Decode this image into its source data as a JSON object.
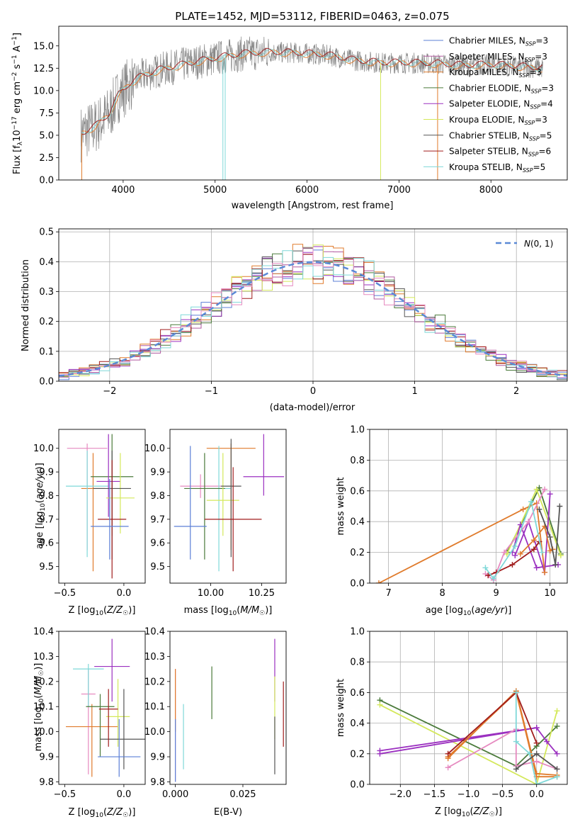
{
  "figure_title": "PLATE=1452, MJD=53112, FIBERID=0463, z=0.075",
  "colors": [
    "#5b7fd6",
    "#b15aa0",
    "#e07b2c",
    "#4a7a3a",
    "#9b30c0",
    "#d4e85a",
    "#555555",
    "#a01c1c",
    "#7fd8d8",
    "#e68ac0",
    "#888888"
  ],
  "chart_data": [
    {
      "id": "spectrum",
      "type": "line",
      "xlabel": "wavelength [Angstrom, rest frame]",
      "ylabel": "Flux [f_λ 10^-17 erg cm^-2 s^-1 A^-1]",
      "xlim": [
        3300,
        8830
      ],
      "ylim": [
        0,
        17.2
      ],
      "xticks": [
        4000,
        5000,
        6000,
        7000,
        8000
      ],
      "yticks": [
        0.0,
        2.5,
        5.0,
        7.5,
        10.0,
        12.5,
        15.0
      ],
      "ytick_labels": [
        "0.0",
        "2.5",
        "5.0",
        "7.5",
        "10.0",
        "12.5",
        "15.0"
      ],
      "legend": [
        "Chabrier MILES, N_SSP=3",
        "Salpeter MILES, N_SSP=3",
        "Kroupa MILES, N_SSP=3",
        "Chabrier ELODIE, N_SSP=3",
        "Salpeter ELODIE, N_SSP=4",
        "Kroupa ELODIE, N_SSP=3",
        "Chabrier STELIB, N_SSP=5",
        "Salpeter STELIB, N_SSP=6",
        "Kroupa STELIB, N_SSP=5"
      ],
      "legend_placement": "upper right",
      "continuum": {
        "x": [
          3550,
          3700,
          3850,
          3950,
          4050,
          4200,
          4400,
          4700,
          5000,
          5300,
          5600,
          5900,
          6200,
          6500,
          6800,
          7100,
          7400,
          7700,
          8000,
          8300,
          8550
        ],
        "y": [
          5.2,
          6.0,
          7.4,
          9.5,
          10.6,
          11.6,
          12.3,
          13.0,
          13.6,
          14.1,
          14.3,
          14.2,
          14.0,
          13.4,
          13.1,
          13.1,
          13.0,
          12.8,
          12.9,
          12.7,
          12.5
        ]
      }
    },
    {
      "id": "residuals",
      "type": "histogram",
      "xlabel": "(data-model)/error",
      "ylabel": "Normed distribution",
      "xlim": [
        -2.5,
        2.5
      ],
      "ylim": [
        0,
        0.51
      ],
      "xticks": [
        -2,
        -1,
        0,
        1,
        2
      ],
      "xtick_labels": [
        "−2",
        "−1",
        "0",
        "1",
        "2"
      ],
      "yticks": [
        0.0,
        0.1,
        0.2,
        0.3,
        0.4,
        0.5
      ],
      "ytick_labels": [
        "0.0",
        "0.1",
        "0.2",
        "0.3",
        "0.4",
        "0.5"
      ],
      "grid": true,
      "legend": [
        "N(0,1)"
      ],
      "bin_width": 0.1,
      "gaussian": {
        "mean": 0,
        "sigma": 1
      }
    },
    {
      "id": "age_vs_Z",
      "type": "errorbar",
      "xlabel": "Z [log10(Z/Z☉)]",
      "ylabel": "age [log10(age/yr)]",
      "xlim": [
        -0.55,
        0.18
      ],
      "ylim": [
        9.43,
        10.08
      ],
      "xticks": [
        -0.5,
        0.0
      ],
      "xtick_labels": [
        "−0.5",
        "0.0"
      ],
      "yticks": [
        9.5,
        9.6,
        9.7,
        9.8,
        9.9,
        10.0
      ],
      "ytick_labels": [
        "9.5",
        "9.6",
        "9.7",
        "9.8",
        "9.9",
        "10.0"
      ],
      "points": [
        {
          "x": -0.31,
          "xerr": 0.17,
          "y": 10.0,
          "yerr": [
            0.43,
            0.02
          ]
        },
        {
          "x": -0.26,
          "xerr": 0.1,
          "y": 9.83,
          "yerr": [
            0.35,
            0.15
          ]
        },
        {
          "x": -0.31,
          "xerr": 0.18,
          "y": 9.84,
          "yerr": [
            0.3,
            0.15
          ]
        },
        {
          "x": -0.1,
          "xerr": 0.18,
          "y": 9.88,
          "yerr": [
            0.25,
            0.18
          ]
        },
        {
          "x": -0.13,
          "xerr": 0.1,
          "y": 9.86,
          "yerr": [
            0.15,
            0.2
          ]
        },
        {
          "x": -0.03,
          "xerr": 0.12,
          "y": 9.79,
          "yerr": [
            0.15,
            0.19
          ]
        },
        {
          "x": -0.1,
          "xerr": 0.16,
          "y": 9.83,
          "yerr": [
            0.3,
            0.16
          ]
        },
        {
          "x": -0.1,
          "xerr": 0.12,
          "y": 9.7,
          "yerr": [
            0.25,
            0.25
          ]
        },
        {
          "x": -0.12,
          "xerr": 0.16,
          "y": 9.67,
          "yerr": [
            0.14,
            0.2
          ]
        }
      ]
    },
    {
      "id": "age_vs_mass",
      "type": "errorbar",
      "xlabel": "mass [log10(M/M☉)]",
      "ylabel": "",
      "xlim": [
        9.8,
        10.37
      ],
      "ylim": [
        9.43,
        10.08
      ],
      "xticks": [
        10.0,
        10.25
      ],
      "xtick_labels": [
        "10.00",
        "10.25"
      ],
      "yticks": [
        9.5,
        9.6,
        9.7,
        9.8,
        9.9,
        10.0
      ],
      "ytick_labels": [
        "9.5",
        "9.6",
        "9.7",
        "9.8",
        "9.9",
        "10.0"
      ],
      "points": [
        {
          "x": 9.95,
          "xerr": 0.1,
          "y": 9.84,
          "yerr": [
            0.05,
            0.05
          ]
        },
        {
          "x": 10.1,
          "xerr": 0.12,
          "y": 10.0,
          "yerr": [
            0.43,
            0.02
          ]
        },
        {
          "x": 10.04,
          "xerr": 0.06,
          "y": 9.83,
          "yerr": [
            0.35,
            0.18
          ]
        },
        {
          "x": 9.97,
          "xerr": 0.1,
          "y": 9.83,
          "yerr": [
            0.3,
            0.15
          ]
        },
        {
          "x": 10.26,
          "xerr": 0.1,
          "y": 9.88,
          "yerr": [
            0.08,
            0.18
          ]
        },
        {
          "x": 10.06,
          "xerr": 0.08,
          "y": 9.78,
          "yerr": [
            0.15,
            0.2
          ]
        },
        {
          "x": 10.1,
          "xerr": 0.05,
          "y": 9.84,
          "yerr": [
            0.3,
            0.2
          ]
        },
        {
          "x": 10.11,
          "xerr": 0.14,
          "y": 9.7,
          "yerr": [
            0.22,
            0.22
          ]
        },
        {
          "x": 9.9,
          "xerr": 0.08,
          "y": 9.67,
          "yerr": [
            0.14,
            0.34
          ]
        }
      ]
    },
    {
      "id": "weight_vs_age",
      "type": "line",
      "xlabel": "age [log10(age/yr)]",
      "ylabel": "mass weight",
      "xlim": [
        6.65,
        10.32
      ],
      "ylim": [
        0,
        1.0
      ],
      "xticks": [
        7,
        8,
        9,
        10
      ],
      "xtick_labels": [
        "7",
        "8",
        "9",
        "10"
      ],
      "yticks": [
        0.0,
        0.2,
        0.4,
        0.6,
        0.8,
        1.0
      ],
      "ytick_labels": [
        "0.0",
        "0.2",
        "0.4",
        "0.6",
        "0.8",
        "1.0"
      ],
      "grid": true,
      "series": [
        {
          "x": [
            9.2,
            9.8,
            10.2
          ],
          "y": [
            0.2,
            0.62,
            0.19
          ]
        },
        {
          "x": [
            9.2,
            9.75,
            10.2
          ],
          "y": [
            0.19,
            0.61,
            0.18
          ]
        },
        {
          "x": [
            9.3,
            9.45,
            9.75,
            10.15
          ],
          "y": [
            0.2,
            0.38,
            0.1,
            0.12
          ]
        },
        {
          "x": [
            9.35,
            9.6,
            9.9,
            10.0
          ],
          "y": [
            0.18,
            0.4,
            0.07,
            0.58
          ]
        },
        {
          "x": [
            9.45,
            9.7,
            9.9,
            10.0,
            10.05
          ],
          "y": [
            0.19,
            0.28,
            0.37,
            0.21,
            0.22
          ]
        },
        {
          "x": [
            6.82,
            9.5,
            9.75,
            9.9
          ],
          "y": [
            0.0,
            0.48,
            0.52,
            0.07
          ]
        },
        {
          "x": [
            8.8,
            8.95,
            9.15,
            9.6,
            9.9
          ],
          "y": [
            0.06,
            0.02,
            0.2,
            0.4,
            0.61
          ]
        },
        {
          "x": [
            8.85,
            9.0,
            9.3,
            9.7,
            9.8
          ],
          "y": [
            0.05,
            0.07,
            0.12,
            0.22,
            0.27
          ]
        },
        {
          "x": [
            8.8,
            8.95,
            9.35,
            9.65,
            9.85
          ],
          "y": [
            0.1,
            0.03,
            0.24,
            0.53,
            0.2
          ]
        },
        {
          "x": [
            9.8,
            10.0,
            10.1,
            10.18
          ],
          "y": [
            0.48,
            0.3,
            0.12,
            0.5
          ]
        }
      ]
    },
    {
      "id": "mass_vs_Z",
      "type": "errorbar",
      "xlabel": "Z [log10(Z/Z☉)]",
      "ylabel": "mass [log10(M/M☉)]",
      "xlim": [
        -0.55,
        0.18
      ],
      "ylim": [
        9.79,
        10.4
      ],
      "xticks": [
        -0.5,
        0.0
      ],
      "xtick_labels": [
        "−0.5",
        "0.0"
      ],
      "yticks": [
        9.8,
        9.9,
        10.0,
        10.1,
        10.2,
        10.3,
        10.4
      ],
      "ytick_labels": [
        "9.8",
        "9.9",
        "10.0",
        "10.1",
        "10.2",
        "10.3",
        "10.4"
      ],
      "points": [
        {
          "x": -0.3,
          "xerr": 0.06,
          "y": 10.15,
          "yerr": [
            0.32,
            0.1
          ]
        },
        {
          "x": -0.27,
          "xerr": 0.22,
          "y": 10.02,
          "yerr": [
            0.2,
            0.09
          ]
        },
        {
          "x": -0.3,
          "xerr": 0.13,
          "y": 10.25,
          "yerr": [
            0.15,
            0.02
          ]
        },
        {
          "x": -0.2,
          "xerr": 0.12,
          "y": 10.1,
          "yerr": [
            0.2,
            0.05
          ]
        },
        {
          "x": -0.1,
          "xerr": 0.15,
          "y": 10.26,
          "yerr": [
            0.14,
            0.11
          ]
        },
        {
          "x": -0.05,
          "xerr": 0.1,
          "y": 10.06,
          "yerr": [
            0.12,
            0.15
          ]
        },
        {
          "x": 0.0,
          "xerr": 0.2,
          "y": 9.97,
          "yerr": [
            0.12,
            0.2
          ]
        },
        {
          "x": -0.13,
          "xerr": 0.08,
          "y": 10.09,
          "yerr": [
            0.15,
            0.08
          ]
        },
        {
          "x": -0.04,
          "xerr": 0.18,
          "y": 9.9,
          "yerr": [
            0.08,
            0.15
          ]
        }
      ]
    },
    {
      "id": "mass_vs_EBV",
      "type": "errorbar",
      "xlabel": "E(B-V)",
      "ylabel": "",
      "xlim": [
        -0.002,
        0.041
      ],
      "ylim": [
        9.79,
        10.4
      ],
      "xticks": [
        0.0,
        0.025
      ],
      "xtick_labels": [
        "0.000",
        "0.025"
      ],
      "yticks": [
        9.8,
        9.9,
        10.0,
        10.1,
        10.2,
        10.3,
        10.4
      ],
      "ytick_labels": [
        "9.8",
        "9.9",
        "10.0",
        "10.1",
        "10.2",
        "10.3",
        "10.4"
      ],
      "points": [
        {
          "x": 0.0,
          "y": 10.07,
          "yerr": [
            0.27,
            0.18
          ]
        },
        {
          "x": 0.0,
          "y": 10.1,
          "yerr": [
            0.1,
            0.15
          ]
        },
        {
          "x": 0.003,
          "y": 10.0,
          "yerr": [
            0.15,
            0.11
          ]
        },
        {
          "x": 0.0135,
          "y": 10.15,
          "yerr": [
            0.1,
            0.11
          ]
        },
        {
          "x": 0.0368,
          "y": 10.25,
          "yerr": [
            0.13,
            0.12
          ]
        },
        {
          "x": 0.0368,
          "y": 10.06,
          "yerr": [
            0.09,
            0.16
          ]
        },
        {
          "x": 0.0368,
          "y": 9.9,
          "yerr": [
            0.07,
            0.16
          ]
        },
        {
          "x": 0.04,
          "y": 10.07,
          "yerr": [
            0.13,
            0.13
          ]
        },
        {
          "x": 0.0,
          "y": 10.0,
          "yerr": [
            0.2,
            0.05
          ]
        }
      ]
    },
    {
      "id": "weight_vs_Z",
      "type": "line",
      "xlabel": "Z [log10(Z/Z☉)]",
      "ylabel": "mass weight",
      "xlim": [
        -2.45,
        0.45
      ],
      "ylim": [
        0,
        1.0
      ],
      "xticks": [
        -2.0,
        -1.5,
        -1.0,
        -0.5,
        0.0
      ],
      "xtick_labels": [
        "−2.0",
        "−1.5",
        "−1.0",
        "−0.5",
        "0.0"
      ],
      "yticks": [
        0.0,
        0.2,
        0.4,
        0.6,
        0.8,
        1.0
      ],
      "ytick_labels": [
        "0.0",
        "0.2",
        "0.4",
        "0.6",
        "0.8",
        "1.0"
      ],
      "grid": true,
      "series": [
        {
          "x": [
            -2.3,
            -0.3,
            0.0,
            0.3
          ],
          "y": [
            0.55,
            0.12,
            0.25,
            0.38
          ]
        },
        {
          "x": [
            -2.3,
            0.0,
            0.3
          ],
          "y": [
            0.52,
            0.0,
            0.48
          ]
        },
        {
          "x": [
            -2.3,
            0.0,
            0.15,
            0.3
          ],
          "y": [
            0.22,
            0.37,
            0.28,
            0.2
          ]
        },
        {
          "x": [
            -2.3,
            0.0
          ],
          "y": [
            0.2,
            0.37
          ]
        },
        {
          "x": [
            -1.3,
            -0.3,
            0.0,
            0.3
          ],
          "y": [
            0.18,
            0.6,
            0.05,
            0.05
          ]
        },
        {
          "x": [
            -1.3,
            -0.3,
            0.0,
            0.3
          ],
          "y": [
            0.17,
            0.61,
            0.07,
            0.06
          ]
        },
        {
          "x": [
            -1.3,
            -0.3,
            -0.3,
            0.0,
            0.3
          ],
          "y": [
            0.11,
            0.36,
            0.12,
            0.15,
            0.1
          ]
        },
        {
          "x": [
            -1.3,
            -0.3,
            0.0
          ],
          "y": [
            0.2,
            0.6,
            0.27
          ]
        },
        {
          "x": [
            -0.3,
            -0.3,
            -0.1,
            0.0,
            0.3
          ],
          "y": [
            0.6,
            0.28,
            0.2,
            0.0,
            0.05
          ]
        },
        {
          "x": [
            -0.3,
            0.0,
            0.3
          ],
          "y": [
            0.1,
            0.2,
            0.1
          ]
        }
      ]
    }
  ]
}
